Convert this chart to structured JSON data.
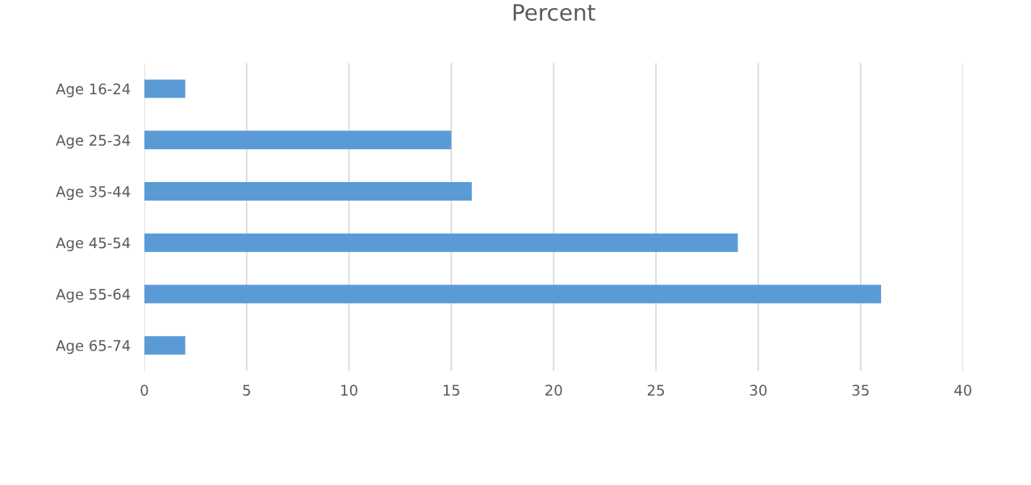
{
  "chart_data": {
    "type": "bar",
    "orientation": "horizontal",
    "title": "Percent",
    "categories": [
      "Age 16-24",
      "Age 25-34",
      "Age 35-44",
      "Age 45-54",
      "Age 55-64",
      "Age 65-74"
    ],
    "values": [
      2,
      15,
      16,
      29,
      36,
      2
    ],
    "color": "#5b9bd5",
    "xlim": [
      0,
      40
    ],
    "xticks": [
      0,
      5,
      10,
      15,
      20,
      25,
      30,
      35,
      40
    ],
    "grid": "x",
    "legend": false
  }
}
